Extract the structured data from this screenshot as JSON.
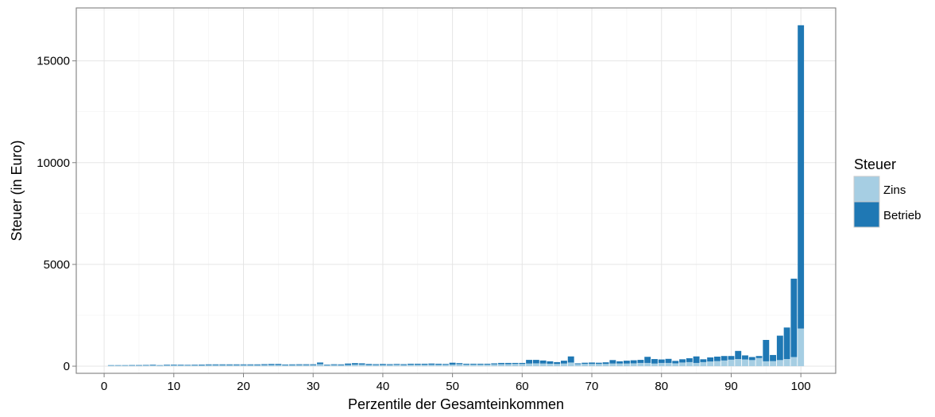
{
  "chart_data": {
    "type": "bar",
    "stacked": true,
    "xlabel": "Perzentile der Gesamteinkommen",
    "ylabel": "Steuer (in Euro)",
    "xlim": [
      -4,
      105
    ],
    "ylim": [
      -350,
      17600
    ],
    "x_ticks": [
      0,
      10,
      20,
      30,
      40,
      50,
      60,
      70,
      80,
      90,
      100
    ],
    "y_ticks": [
      0,
      5000,
      10000,
      15000
    ],
    "legend": {
      "title": "Steuer",
      "position": "right",
      "entries": [
        "Zins",
        "Betrieb"
      ]
    },
    "grid": true,
    "colors": {
      "Zins": "#a6cee3",
      "Betrieb": "#1f78b4"
    },
    "x": [
      1,
      2,
      3,
      4,
      5,
      6,
      7,
      8,
      9,
      10,
      11,
      12,
      13,
      14,
      15,
      16,
      17,
      18,
      19,
      20,
      21,
      22,
      23,
      24,
      25,
      26,
      27,
      28,
      29,
      30,
      31,
      32,
      33,
      34,
      35,
      36,
      37,
      38,
      39,
      40,
      41,
      42,
      43,
      44,
      45,
      46,
      47,
      48,
      49,
      50,
      51,
      52,
      53,
      54,
      55,
      56,
      57,
      58,
      59,
      60,
      61,
      62,
      63,
      64,
      65,
      66,
      67,
      68,
      69,
      70,
      71,
      72,
      73,
      74,
      75,
      76,
      77,
      78,
      79,
      80,
      81,
      82,
      83,
      84,
      85,
      86,
      87,
      88,
      89,
      90,
      91,
      92,
      93,
      94,
      95,
      96,
      97,
      98,
      99,
      100
    ],
    "series": [
      {
        "name": "Zins",
        "values": [
          30,
          30,
          30,
          30,
          30,
          35,
          40,
          30,
          40,
          50,
          40,
          40,
          40,
          40,
          50,
          50,
          50,
          50,
          50,
          50,
          50,
          50,
          55,
          60,
          60,
          50,
          50,
          55,
          55,
          55,
          100,
          50,
          55,
          50,
          60,
          80,
          80,
          60,
          60,
          60,
          60,
          70,
          60,
          70,
          70,
          70,
          70,
          70,
          70,
          80,
          100,
          80,
          80,
          80,
          80,
          90,
          100,
          100,
          110,
          110,
          130,
          140,
          130,
          120,
          110,
          130,
          180,
          100,
          110,
          110,
          110,
          110,
          130,
          130,
          130,
          140,
          160,
          160,
          130,
          160,
          160,
          140,
          180,
          200,
          160,
          200,
          230,
          250,
          280,
          320,
          350,
          330,
          300,
          400,
          240,
          250,
          300,
          350,
          450,
          1850
        ]
      },
      {
        "name": "Betrieb",
        "values": [
          20,
          20,
          20,
          25,
          25,
          25,
          30,
          20,
          30,
          30,
          30,
          25,
          30,
          35,
          40,
          40,
          40,
          40,
          40,
          40,
          40,
          40,
          45,
          50,
          50,
          35,
          40,
          40,
          40,
          40,
          80,
          30,
          40,
          40,
          70,
          70,
          60,
          50,
          40,
          50,
          40,
          40,
          40,
          50,
          50,
          50,
          60,
          50,
          40,
          90,
          50,
          40,
          40,
          40,
          40,
          50,
          60,
          60,
          50,
          50,
          180,
          170,
          150,
          120,
          90,
          140,
          300,
          40,
          60,
          70,
          60,
          80,
          170,
          110,
          140,
          150,
          150,
          300,
          220,
          170,
          200,
          120,
          160,
          190,
          320,
          140,
          200,
          220,
          220,
          180,
          400,
          200,
          150,
          100,
          1050,
          300,
          1200,
          1550,
          3850,
          14900
        ]
      }
    ]
  }
}
